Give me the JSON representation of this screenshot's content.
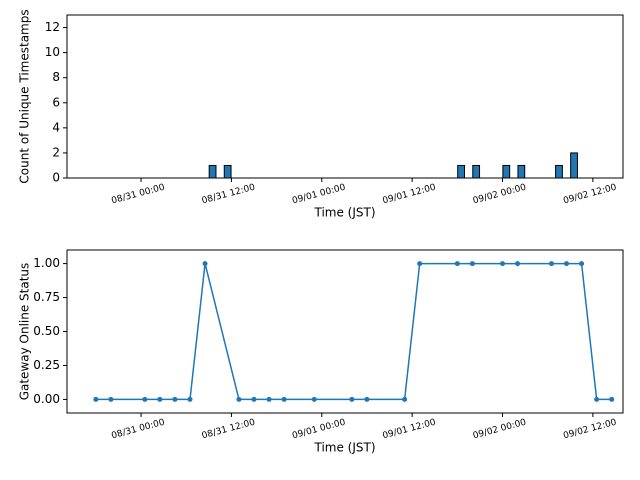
{
  "chart_data": [
    {
      "type": "histogram",
      "ylabel": "Count of Unique Timestamps",
      "xlabel": "Time (JST)",
      "color": "#1f77b4",
      "edgecolor": "#000000",
      "bins": [
        "08/30 16:00",
        "08/30 17:00",
        "08/30 18:00",
        "08/30 19:00",
        "08/30 20:00",
        "08/30 21:00",
        "08/30 22:00",
        "08/30 23:00",
        "08/31 00:00",
        "08/31 01:00",
        "08/31 02:00",
        "08/31 03:00",
        "08/31 04:00",
        "08/31 05:00",
        "08/31 06:00",
        "08/31 07:00",
        "08/31 08:00",
        "08/31 09:00",
        "08/31 10:00",
        "08/31 11:00",
        "08/31 12:00",
        "08/31 13:00",
        "08/31 14:00",
        "08/31 15:00",
        "08/31 16:00",
        "08/31 17:00",
        "08/31 18:00",
        "08/31 19:00",
        "08/31 20:00",
        "08/31 21:00",
        "08/31 22:00",
        "08/31 23:00",
        "09/01 00:00",
        "09/01 01:00",
        "09/01 02:00",
        "09/01 03:00",
        "09/01 04:00",
        "09/01 05:00",
        "09/01 06:00",
        "09/01 07:00",
        "09/01 08:00",
        "09/01 09:00",
        "09/01 10:00",
        "09/01 11:00",
        "09/01 12:00",
        "09/01 13:00",
        "09/01 14:00",
        "09/01 15:00",
        "09/01 16:00",
        "09/01 17:00",
        "09/01 18:00",
        "09/01 19:00",
        "09/01 20:00",
        "09/01 21:00",
        "09/01 22:00",
        "09/01 23:00",
        "09/02 00:00",
        "09/02 01:00",
        "09/02 02:00",
        "09/02 03:00",
        "09/02 04:00",
        "09/02 05:00",
        "09/02 06:00",
        "09/02 07:00",
        "09/02 08:00",
        "09/02 09:00",
        "09/02 10:00",
        "09/02 11:00",
        "09/02 12:00",
        "09/02 13:00",
        "09/02 14:00"
      ],
      "values": [
        0,
        0,
        0,
        0,
        0,
        0,
        0,
        0,
        0,
        0,
        0,
        0,
        0,
        0,
        0,
        0,
        0,
        1,
        0,
        1,
        0,
        0,
        0,
        0,
        0,
        0,
        0,
        0,
        0,
        0,
        0,
        0,
        0,
        0,
        0,
        0,
        0,
        0,
        0,
        0,
        0,
        0,
        0,
        0,
        0,
        0,
        0,
        0,
        0,
        0,
        1,
        0,
        1,
        0,
        0,
        0,
        1,
        0,
        1,
        0,
        0,
        0,
        0,
        1,
        0,
        2,
        0,
        0,
        0,
        0
      ],
      "xlim": [
        "08/30 14:10",
        "09/02 16:00"
      ],
      "xticks": [
        "08/31 00:00",
        "08/31 12:00",
        "09/01 00:00",
        "09/01 12:00",
        "09/02 00:00",
        "09/02 12:00"
      ],
      "ylim": [
        0,
        13
      ],
      "yticks": [
        0,
        2,
        4,
        6,
        8,
        10,
        12
      ]
    },
    {
      "type": "line",
      "ylabel": "Gateway Online Status",
      "xlabel": "Time (JST)",
      "color": "#1f77b4",
      "x": [
        "08/30 18:00",
        "08/30 20:00",
        "08/31 00:30",
        "08/31 02:30",
        "08/31 04:30",
        "08/31 06:30",
        "08/31 08:30",
        "08/31 13:00",
        "08/31 15:00",
        "08/31 17:00",
        "08/31 19:00",
        "08/31 23:00",
        "09/01 04:00",
        "09/01 06:00",
        "09/01 11:00",
        "09/01 13:00",
        "09/01 18:00",
        "09/01 20:00",
        "09/02 00:00",
        "09/02 02:00",
        "09/02 06:30",
        "09/02 08:30",
        "09/02 10:30",
        "09/02 12:30",
        "09/02 14:30"
      ],
      "values": [
        0,
        0,
        0,
        0,
        0,
        0,
        1,
        0,
        0,
        0,
        0,
        0,
        0,
        0,
        0,
        1,
        1,
        1,
        1,
        1,
        1,
        1,
        1,
        0,
        0
      ],
      "xlim": [
        "08/30 14:10",
        "09/02 16:00"
      ],
      "xticks": [
        "08/31 00:00",
        "08/31 12:00",
        "09/01 00:00",
        "09/01 12:00",
        "09/02 00:00",
        "09/02 12:00"
      ],
      "ylim": [
        -0.1,
        1.1
      ],
      "yticks": [
        {
          "value": 0,
          "label": "0.00"
        },
        {
          "value": 0.25,
          "label": "0.25"
        },
        {
          "value": 0.5,
          "label": "0.50"
        },
        {
          "value": 0.75,
          "label": "0.75"
        },
        {
          "value": 1,
          "label": "1.00"
        }
      ]
    }
  ]
}
